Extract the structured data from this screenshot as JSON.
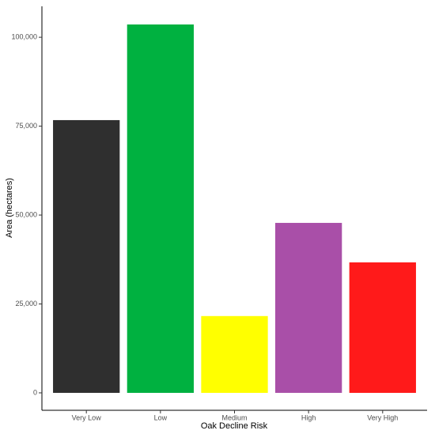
{
  "chart_data": {
    "type": "bar",
    "x_label": "Oak Decline Risk",
    "y_label": "Area (hectares)",
    "categories": [
      "Very Low",
      "Low",
      "Medium",
      "High",
      "Very High"
    ],
    "values": [
      76700,
      103600,
      21600,
      47800,
      36700
    ],
    "colors": [
      "#2f2f2f",
      "#00b140",
      "#ffff00",
      "#a94fa8",
      "#ff1a1a"
    ],
    "ylim": [
      -4900,
      108700
    ],
    "yticks": [
      0,
      {
        "value": 25000,
        "label": "25,000"
      },
      {
        "value": 50000,
        "label": "50,000"
      },
      {
        "value": 75000,
        "label": "75,000"
      },
      {
        "value": 100000,
        "label": "100,000"
      }
    ],
    "grid": false
  }
}
